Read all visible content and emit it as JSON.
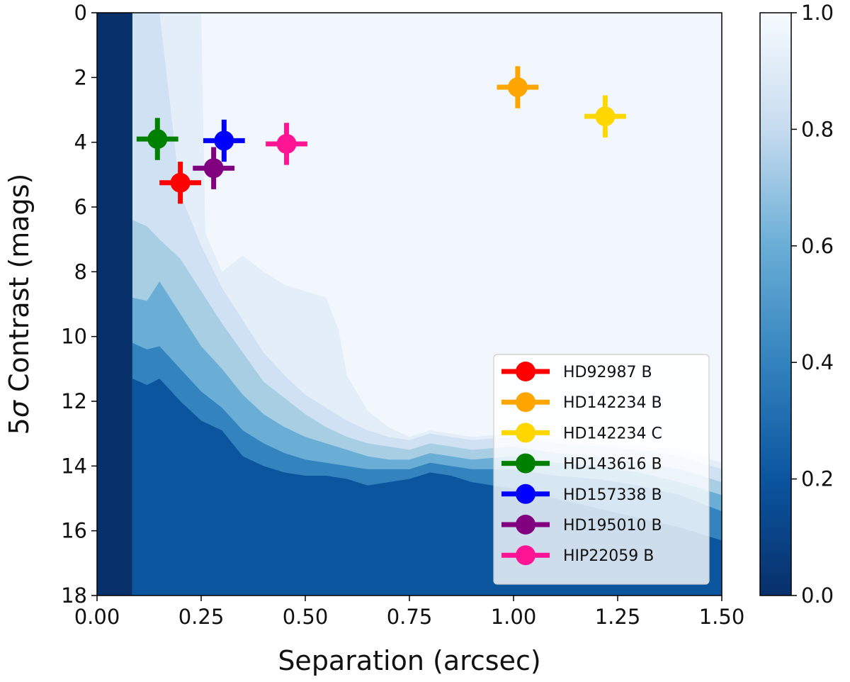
{
  "chart_data": {
    "type": "scatter",
    "xlabel": "Separation (arcsec)",
    "ylabel_prefix": "5",
    "ylabel_sigma": "σ",
    "ylabel_suffix": " Contrast (mags)",
    "xlim": [
      0,
      1.5
    ],
    "ylim": [
      18,
      0
    ],
    "y_inverted": true,
    "x_ticks": [
      "0.00",
      "0.25",
      "0.50",
      "0.75",
      "1.00",
      "1.25",
      "1.50"
    ],
    "y_ticks": [
      "0",
      "2",
      "4",
      "6",
      "8",
      "10",
      "12",
      "14",
      "16",
      "18"
    ],
    "colorbar": {
      "range": [
        0,
        1
      ],
      "ticks": [
        "0.0",
        "0.2",
        "0.4",
        "0.6",
        "0.8",
        "1.0"
      ],
      "colormap": "Blues_r"
    },
    "legend_position": "lower-right",
    "series": [
      {
        "name": "HD92987 B",
        "color": "#ff0000",
        "x": 0.2,
        "y": 5.25,
        "xerr": 0.05,
        "yerr": 0.65
      },
      {
        "name": "HD142234 B",
        "color": "#ffa500",
        "x": 1.01,
        "y": 2.3,
        "xerr": 0.05,
        "yerr": 0.65
      },
      {
        "name": "HD142234 C",
        "color": "#ffd700",
        "x": 1.22,
        "y": 3.2,
        "xerr": 0.05,
        "yerr": 0.65
      },
      {
        "name": "HD143616 B",
        "color": "#008000",
        "x": 0.145,
        "y": 3.9,
        "xerr": 0.05,
        "yerr": 0.65
      },
      {
        "name": "HD157338 B",
        "color": "#0000ff",
        "x": 0.305,
        "y": 3.95,
        "xerr": 0.05,
        "yerr": 0.65
      },
      {
        "name": "HD195010 B",
        "color": "#800080",
        "x": 0.28,
        "y": 4.8,
        "xerr": 0.05,
        "yerr": 0.65
      },
      {
        "name": "HIP22059 B",
        "color": "#ff1493",
        "x": 0.455,
        "y": 4.05,
        "xerr": 0.05,
        "yerr": 0.65
      }
    ],
    "completeness_contours": [
      {
        "level": 0.99,
        "color": "#f2f7fd",
        "x": [
          0.085,
          0.12,
          0.2,
          0.25,
          0.3,
          0.35,
          0.4,
          0.45,
          0.5,
          0.55,
          0.6,
          0.65,
          0.7,
          0.75,
          0.8,
          0.85,
          0.9,
          1.0,
          1.1,
          1.2,
          1.3,
          1.4,
          1.5
        ],
        "y": [
          0,
          0,
          0,
          0,
          0,
          0,
          0,
          0,
          0,
          0,
          0,
          0,
          0,
          0,
          0,
          0,
          0,
          0,
          0,
          0,
          0,
          0,
          0
        ]
      },
      {
        "level": 0.95,
        "color": "#e3eef9",
        "x": [
          0.085,
          0.12,
          0.2,
          0.25,
          0.26,
          0.3,
          0.35,
          0.4,
          0.45,
          0.5,
          0.55,
          0.58,
          0.6,
          0.65,
          0.7,
          0.75,
          0.8,
          0.85,
          0.9,
          1.0,
          1.1,
          1.2,
          1.3,
          1.4,
          1.5
        ],
        "y": [
          0,
          0,
          0,
          0,
          6.8,
          8.0,
          7.5,
          8.0,
          8.4,
          8.6,
          8.8,
          9.8,
          11.2,
          12.3,
          12.8,
          13.1,
          12.9,
          13.0,
          13.1,
          13.0,
          13.2,
          13.3,
          13.4,
          13.5,
          13.9
        ]
      },
      {
        "level": 0.85,
        "color": "#cfe1f2",
        "x": [
          0.085,
          0.12,
          0.15,
          0.2,
          0.25,
          0.3,
          0.35,
          0.4,
          0.45,
          0.5,
          0.55,
          0.6,
          0.65,
          0.7,
          0.75,
          0.8,
          0.85,
          0.9,
          1.0,
          1.1,
          1.2,
          1.3,
          1.4,
          1.5
        ],
        "y": [
          0,
          0,
          0,
          5.6,
          7.2,
          8.5,
          9.5,
          10.5,
          11.2,
          11.8,
          12.2,
          12.6,
          12.9,
          13.1,
          13.2,
          13.0,
          13.1,
          13.2,
          13.1,
          13.3,
          13.4,
          13.5,
          13.7,
          14.1
        ]
      },
      {
        "level": 0.7,
        "color": "#a8cee4",
        "x": [
          0.085,
          0.12,
          0.15,
          0.2,
          0.25,
          0.3,
          0.35,
          0.4,
          0.45,
          0.5,
          0.55,
          0.6,
          0.65,
          0.7,
          0.75,
          0.8,
          0.85,
          0.9,
          1.0,
          1.1,
          1.2,
          1.3,
          1.4,
          1.5
        ],
        "y": [
          6.4,
          6.6,
          7.0,
          7.6,
          8.6,
          9.6,
          10.5,
          11.4,
          11.9,
          12.4,
          12.8,
          13.1,
          13.3,
          13.4,
          13.5,
          13.3,
          13.4,
          13.5,
          13.4,
          13.6,
          13.7,
          13.9,
          14.1,
          14.5
        ]
      },
      {
        "level": 0.5,
        "color": "#6aaed6",
        "x": [
          0.085,
          0.12,
          0.15,
          0.2,
          0.25,
          0.3,
          0.35,
          0.4,
          0.45,
          0.5,
          0.55,
          0.6,
          0.65,
          0.7,
          0.75,
          0.8,
          0.85,
          0.9,
          1.0,
          1.1,
          1.2,
          1.3,
          1.4,
          1.5
        ],
        "y": [
          8.8,
          8.9,
          8.3,
          9.3,
          10.3,
          11.0,
          11.8,
          12.4,
          12.8,
          13.1,
          13.3,
          13.5,
          13.7,
          13.8,
          13.8,
          13.6,
          13.7,
          13.8,
          13.7,
          13.9,
          14.0,
          14.2,
          14.5,
          14.9
        ]
      },
      {
        "level": 0.3,
        "color": "#3383be",
        "x": [
          0.085,
          0.12,
          0.15,
          0.2,
          0.25,
          0.3,
          0.35,
          0.4,
          0.45,
          0.5,
          0.55,
          0.6,
          0.65,
          0.7,
          0.75,
          0.8,
          0.85,
          0.9,
          1.0,
          1.1,
          1.2,
          1.3,
          1.4,
          1.5
        ],
        "y": [
          10.2,
          10.4,
          10.3,
          11.0,
          11.7,
          12.2,
          12.9,
          13.3,
          13.6,
          13.8,
          13.9,
          14.0,
          14.1,
          14.1,
          14.1,
          13.9,
          14.0,
          14.1,
          14.1,
          14.3,
          14.4,
          14.6,
          14.9,
          15.4
        ]
      },
      {
        "level": 0.1,
        "color": "#0b559f",
        "x": [
          0.085,
          0.12,
          0.15,
          0.2,
          0.25,
          0.3,
          0.35,
          0.4,
          0.45,
          0.5,
          0.55,
          0.6,
          0.65,
          0.7,
          0.75,
          0.8,
          0.85,
          0.9,
          1.0,
          1.1,
          1.2,
          1.3,
          1.4,
          1.5
        ],
        "y": [
          11.3,
          11.5,
          11.3,
          12.0,
          12.6,
          12.9,
          13.7,
          14.0,
          14.2,
          14.3,
          14.3,
          14.4,
          14.6,
          14.5,
          14.4,
          14.2,
          14.3,
          14.5,
          14.7,
          15.0,
          15.3,
          15.6,
          15.9,
          16.3
        ]
      }
    ]
  }
}
